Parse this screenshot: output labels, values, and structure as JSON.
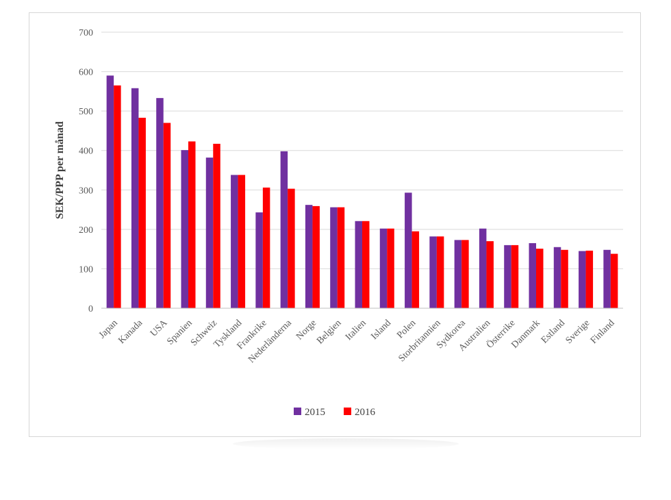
{
  "chart_data": {
    "type": "bar",
    "title": "",
    "xlabel": "",
    "ylabel": "SEK/PPP  per månad",
    "ylim": [
      0,
      700
    ],
    "yticks": [
      0,
      100,
      200,
      300,
      400,
      500,
      600,
      700
    ],
    "grid": true,
    "legend_position": "bottom",
    "categories": [
      "Japan",
      "Kanada",
      "USA",
      "Spanien",
      "Schweiz",
      "Tyskland",
      "Frankrike",
      "Nederländerna",
      "Norge",
      "Belgien",
      "Italien",
      "Island",
      "Polen",
      "Storbritannien",
      "Sydkorea",
      "Australien",
      "Österrike",
      "Danmark",
      "Estland",
      "Sverige",
      "Finland"
    ],
    "series": [
      {
        "name": "2015",
        "color": "#7030a0",
        "values": [
          590,
          558,
          533,
          401,
          382,
          338,
          243,
          398,
          262,
          256,
          221,
          202,
          293,
          182,
          173,
          202,
          160,
          165,
          155,
          145,
          148
        ]
      },
      {
        "name": "2016",
        "color": "#ff0000",
        "values": [
          565,
          483,
          470,
          423,
          417,
          338,
          306,
          303,
          259,
          256,
          221,
          202,
          195,
          182,
          173,
          170,
          160,
          151,
          148,
          146,
          138
        ]
      }
    ]
  }
}
